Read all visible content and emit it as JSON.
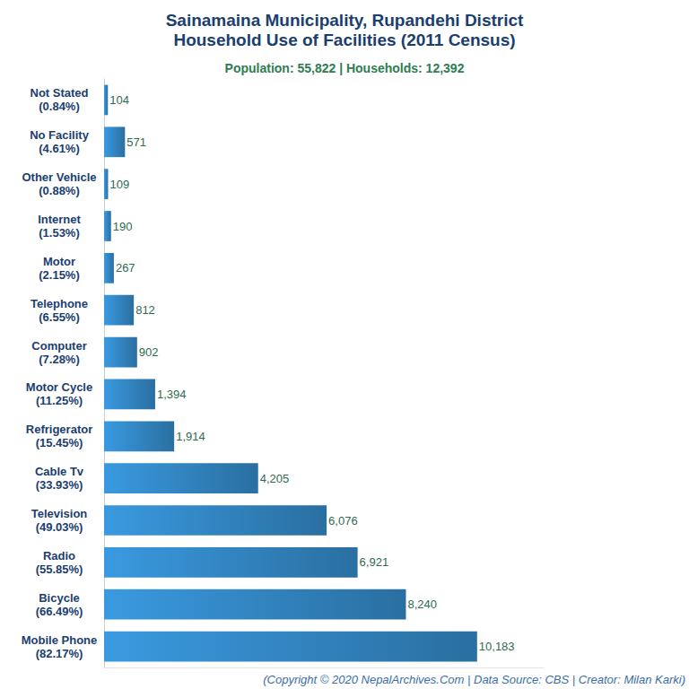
{
  "chart_data": {
    "type": "bar",
    "title": "Sainamaina Municipality, Rupandehi District\nHousehold Use of Facilities (2011 Census)",
    "subtitle": "Population: 55,822 | Households: 12,392",
    "annotations": [
      "(Copyright © 2020 NepalArchives.Com | Data Source: CBS | Creator: Milan Karki)"
    ],
    "categories": [
      "Not Stated\n(0.84%)",
      "No Facility\n(4.61%)",
      "Other Vehicle\n(0.88%)",
      "Internet\n(1.53%)",
      "Motor\n(2.15%)",
      "Telephone\n(6.55%)",
      "Computer\n(7.28%)",
      "Motor Cycle\n(11.25%)",
      "Refrigerator\n(15.45%)",
      "Cable Tv\n(33.93%)",
      "Television\n(49.03%)",
      "Radio\n(55.85%)",
      "Bicycle\n(66.49%)",
      "Mobile Phone\n(82.17%)"
    ],
    "values": [
      104,
      571,
      109,
      190,
      267,
      812,
      902,
      1394,
      1914,
      4205,
      6076,
      6921,
      8240,
      10183
    ],
    "value_labels": [
      "104",
      "571",
      "109",
      "190",
      "267",
      "812",
      "902",
      "1,394",
      "1,914",
      "4,205",
      "6,076",
      "6,921",
      "8,240",
      "10,183"
    ],
    "color": "#3a9ae0",
    "orientation": "horizontal",
    "xlim": [
      0,
      12000
    ],
    "grid": false,
    "data_labels": true,
    "tick_labels": "y"
  }
}
